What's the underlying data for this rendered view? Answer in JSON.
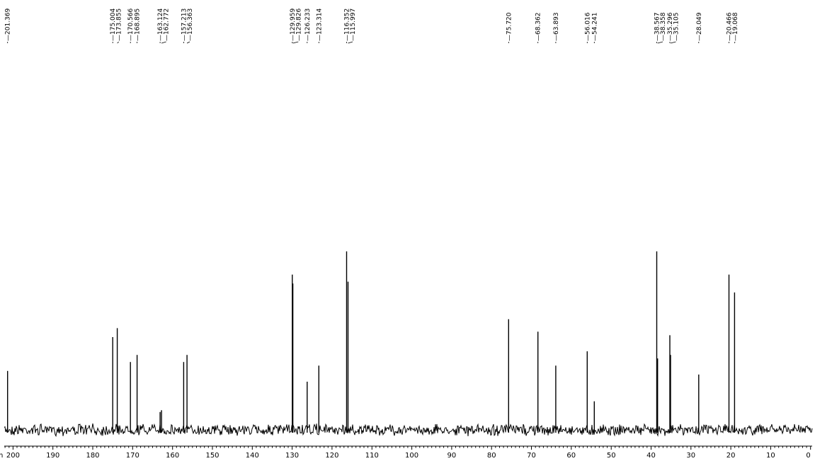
{
  "chart_data": {
    "type": "line",
    "xlabel": "ppm",
    "xlim": [
      0,
      202
    ],
    "x_reversed": true,
    "ticks": [
      200,
      190,
      180,
      170,
      160,
      150,
      140,
      130,
      120,
      110,
      100,
      90,
      80,
      70,
      60,
      50,
      40,
      30,
      20,
      10,
      0
    ],
    "peaks": [
      {
        "ppm": 201.369,
        "label": "201.369",
        "intensity": 0.33
      },
      {
        "ppm": 175.004,
        "label": "175.004",
        "intensity": 0.52
      },
      {
        "ppm": 173.855,
        "label": "173.855",
        "intensity": 0.57
      },
      {
        "ppm": 170.566,
        "label": "170.566",
        "intensity": 0.38
      },
      {
        "ppm": 168.895,
        "label": "168.895",
        "intensity": 0.42
      },
      {
        "ppm": 163.124,
        "label": "163.124",
        "intensity": 0.1
      },
      {
        "ppm": 162.772,
        "label": "162.772",
        "intensity": 0.11
      },
      {
        "ppm": 157.213,
        "label": "157.213",
        "intensity": 0.38
      },
      {
        "ppm": 156.363,
        "label": "156.363",
        "intensity": 0.42
      },
      {
        "ppm": 129.959,
        "label": "129.959",
        "intensity": 0.87
      },
      {
        "ppm": 129.826,
        "label": "129.826",
        "intensity": 0.82
      },
      {
        "ppm": 126.233,
        "label": "126.233",
        "intensity": 0.27
      },
      {
        "ppm": 123.314,
        "label": "123.314",
        "intensity": 0.36
      },
      {
        "ppm": 116.352,
        "label": "116.352",
        "intensity": 1.0
      },
      {
        "ppm": 115.997,
        "label": "115.997",
        "intensity": 0.83
      },
      {
        "ppm": 75.72,
        "label": "75.720",
        "intensity": 0.62
      },
      {
        "ppm": 68.362,
        "label": "68.362",
        "intensity": 0.55
      },
      {
        "ppm": 63.893,
        "label": "63.893",
        "intensity": 0.36
      },
      {
        "ppm": 56.016,
        "label": "56.016",
        "intensity": 0.44
      },
      {
        "ppm": 54.241,
        "label": "54.241",
        "intensity": 0.16
      },
      {
        "ppm": 38.567,
        "label": "38.567",
        "intensity": 1.0
      },
      {
        "ppm": 38.358,
        "label": "38.358",
        "intensity": 0.4
      },
      {
        "ppm": 35.296,
        "label": "35.296",
        "intensity": 0.53
      },
      {
        "ppm": 35.105,
        "label": "35.105",
        "intensity": 0.42
      },
      {
        "ppm": 28.049,
        "label": "28.049",
        "intensity": 0.31
      },
      {
        "ppm": 20.466,
        "label": "20.466",
        "intensity": 0.87
      },
      {
        "ppm": 19.068,
        "label": "19.068",
        "intensity": 0.77
      }
    ],
    "grid": false,
    "colors": {
      "line": "#000000",
      "background": "#ffffff"
    }
  }
}
